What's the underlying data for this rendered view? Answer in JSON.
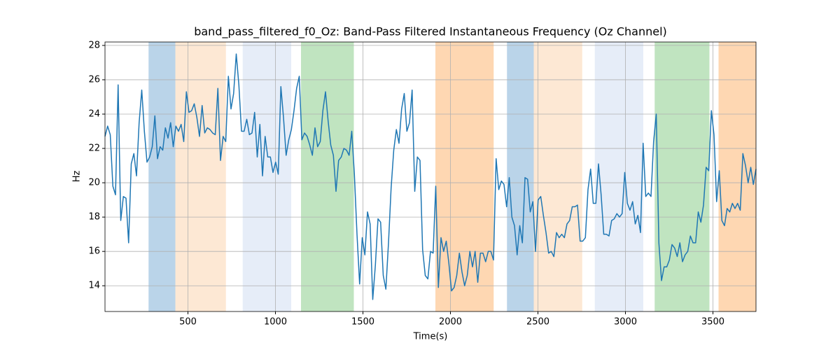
{
  "chart_data": {
    "type": "line",
    "title": "band_pass_filtered_f0_Oz: Band-Pass Filtered Instantaneous Frequency (Oz Channel)",
    "xlabel": "Time(s)",
    "ylabel": "Hz",
    "xlim": [
      26,
      3746
    ],
    "ylim": [
      12.5,
      28.2
    ],
    "xticks": [
      500,
      1000,
      1500,
      2000,
      2500,
      3000,
      3500
    ],
    "yticks": [
      14,
      16,
      18,
      20,
      22,
      24,
      26,
      28
    ],
    "grid": true,
    "spans": [
      {
        "start": 275,
        "end": 428,
        "color": "#bad4e9"
      },
      {
        "start": 428,
        "end": 717,
        "color": "#fde8d4"
      },
      {
        "start": 813,
        "end": 1090,
        "color": "#e6edf8"
      },
      {
        "start": 1146,
        "end": 1448,
        "color": "#c0e4c0"
      },
      {
        "start": 1914,
        "end": 2247,
        "color": "#fed7b2"
      },
      {
        "start": 2323,
        "end": 2476,
        "color": "#bad4e9"
      },
      {
        "start": 2476,
        "end": 2753,
        "color": "#fde8d4"
      },
      {
        "start": 2825,
        "end": 3102,
        "color": "#e6edf8"
      },
      {
        "start": 3167,
        "end": 3480,
        "color": "#c0e4c0"
      },
      {
        "start": 3532,
        "end": 3746,
        "color": "#fed7b2"
      }
    ],
    "series": [
      {
        "color": "#1f77b4",
        "x": [
          26,
          41,
          56,
          71,
          86,
          101,
          116,
          131,
          146,
          161,
          176,
          191,
          206,
          221,
          236,
          251,
          266,
          281,
          296,
          311,
          326,
          341,
          356,
          371,
          386,
          401,
          416,
          431,
          446,
          461,
          476,
          491,
          506,
          521,
          536,
          551,
          566,
          581,
          596,
          611,
          626,
          641,
          656,
          671,
          686,
          701,
          716,
          731,
          746,
          761,
          776,
          791,
          806,
          821,
          836,
          851,
          866,
          881,
          896,
          911,
          926,
          941,
          956,
          971,
          986,
          1001,
          1016,
          1031,
          1046,
          1061,
          1076,
          1091,
          1106,
          1121,
          1136,
          1151,
          1166,
          1181,
          1196,
          1211,
          1226,
          1241,
          1256,
          1271,
          1286,
          1301,
          1316,
          1331,
          1346,
          1361,
          1376,
          1391,
          1406,
          1421,
          1436,
          1451,
          1466,
          1481,
          1496,
          1511,
          1526,
          1541,
          1556,
          1571,
          1586,
          1601,
          1616,
          1631,
          1646,
          1661,
          1676,
          1691,
          1706,
          1721,
          1736,
          1751,
          1766,
          1781,
          1796,
          1811,
          1826,
          1841,
          1856,
          1871,
          1886,
          1901,
          1916,
          1931,
          1946,
          1961,
          1976,
          1991,
          2006,
          2021,
          2036,
          2051,
          2066,
          2081,
          2096,
          2111,
          2126,
          2141,
          2156,
          2171,
          2186,
          2201,
          2216,
          2231,
          2246,
          2261,
          2276,
          2291,
          2306,
          2321,
          2336,
          2351,
          2366,
          2381,
          2396,
          2411,
          2426,
          2441,
          2456,
          2471,
          2486,
          2501,
          2516,
          2531,
          2546,
          2561,
          2576,
          2591,
          2606,
          2621,
          2636,
          2651,
          2666,
          2681,
          2696,
          2711,
          2726,
          2741,
          2756,
          2771,
          2786,
          2801,
          2816,
          2831,
          2846,
          2861,
          2876,
          2891,
          2906,
          2921,
          2936,
          2951,
          2966,
          2981,
          2996,
          3011,
          3026,
          3041,
          3056,
          3071,
          3086,
          3101,
          3116,
          3131,
          3146,
          3161,
          3176,
          3191,
          3206,
          3221,
          3236,
          3251,
          3266,
          3281,
          3296,
          3311,
          3326,
          3341,
          3356,
          3371,
          3386,
          3401,
          3416,
          3431,
          3446,
          3461,
          3476,
          3491,
          3506,
          3521,
          3536,
          3551,
          3566,
          3581,
          3596,
          3611,
          3626,
          3641,
          3656,
          3671,
          3686,
          3701,
          3716,
          3731,
          3746
        ],
        "values": [
          22.7,
          23.3,
          22.8,
          19.8,
          19.3,
          25.7,
          17.8,
          19.2,
          19.1,
          16.5,
          21.1,
          21.7,
          20.4,
          23.5,
          25.4,
          23.0,
          21.2,
          21.5,
          22.1,
          23.9,
          21.4,
          22.1,
          21.9,
          23.2,
          22.6,
          23.5,
          22.1,
          23.3,
          23.0,
          23.4,
          22.4,
          25.3,
          24.1,
          24.2,
          24.6,
          23.8,
          22.7,
          24.5,
          22.9,
          23.2,
          23.1,
          22.9,
          22.8,
          25.5,
          21.3,
          22.7,
          22.4,
          26.2,
          24.3,
          25.2,
          27.5,
          25.7,
          23.0,
          23.0,
          23.7,
          22.8,
          22.9,
          24.1,
          21.5,
          23.4,
          20.4,
          22.7,
          21.5,
          21.5,
          20.6,
          21.2,
          20.5,
          25.6,
          23.8,
          21.6,
          22.5,
          23.1,
          24.2,
          25.5,
          26.2,
          22.5,
          22.9,
          22.7,
          22.2,
          21.6,
          23.2,
          22.1,
          22.4,
          24.2,
          25.3,
          23.6,
          22.2,
          21.6,
          19.5,
          21.3,
          21.5,
          22.0,
          21.9,
          21.6,
          23.0,
          20.5,
          17.0,
          14.1,
          16.8,
          15.8,
          18.3,
          17.6,
          13.2,
          15.2,
          17.9,
          17.7,
          14.6,
          13.8,
          16.5,
          19.7,
          21.9,
          23.1,
          22.3,
          24.3,
          25.2,
          23.0,
          23.5,
          25.4,
          19.5,
          21.5,
          21.3,
          16.1,
          14.6,
          14.4,
          16.0,
          15.9,
          19.8,
          13.9,
          16.8,
          16.0,
          16.6,
          15.3,
          13.7,
          13.9,
          14.6,
          15.9,
          14.8,
          14.0,
          14.6,
          16.0,
          15.1,
          16.0,
          14.2,
          15.9,
          15.9,
          15.4,
          16.0,
          16.0,
          15.5,
          21.4,
          19.6,
          20.1,
          19.9,
          18.6,
          20.3,
          18.0,
          17.5,
          15.8,
          17.5,
          16.5,
          20.3,
          20.2,
          18.3,
          18.9,
          16.0,
          19.0,
          19.2,
          18.1,
          17.1,
          15.9,
          16.0,
          15.7,
          17.1,
          16.8,
          17.0,
          16.8,
          17.6,
          17.8,
          18.6,
          18.6,
          18.7,
          16.6,
          16.6,
          16.8,
          19.6,
          20.8,
          18.8,
          18.8,
          21.1,
          19.3,
          17.0,
          17.0,
          16.9,
          17.8,
          17.9,
          18.2,
          18.0,
          18.2,
          20.6,
          18.8,
          18.4,
          18.9,
          17.6,
          18.1,
          17.1,
          22.3,
          19.2,
          19.4,
          19.2,
          22.4,
          24.0,
          16.5,
          14.3,
          15.1,
          15.1,
          15.5,
          16.4,
          16.2,
          15.7,
          16.5,
          15.4,
          15.8,
          16.0,
          16.9,
          16.5,
          16.5,
          18.3,
          17.7,
          18.7,
          20.9,
          20.7,
          24.2,
          22.8,
          18.9,
          20.7,
          17.8,
          17.5,
          18.5,
          18.3,
          18.8,
          18.5,
          18.8,
          18.4,
          21.7,
          21.0,
          20.0,
          20.9,
          19.9,
          20.8
        ]
      }
    ]
  }
}
